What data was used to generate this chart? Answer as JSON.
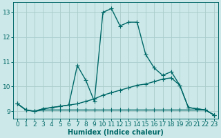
{
  "xlabel": "Humidex (Indice chaleur)",
  "bg_color": "#cce8e8",
  "grid_color": "#aacccc",
  "line_color": "#006868",
  "xlim": [
    -0.5,
    23.5
  ],
  "ylim": [
    8.7,
    13.4
  ],
  "xticks": [
    0,
    1,
    2,
    3,
    4,
    5,
    6,
    7,
    8,
    9,
    10,
    11,
    12,
    13,
    14,
    15,
    16,
    17,
    18,
    19,
    20,
    21,
    22,
    23
  ],
  "yticks": [
    9,
    10,
    11,
    12,
    13
  ],
  "line_flat_x": [
    0,
    1,
    2,
    3,
    4,
    5,
    6,
    7,
    8,
    9,
    10,
    11,
    12,
    13,
    14,
    15,
    16,
    17,
    18,
    19,
    20,
    21,
    22,
    23
  ],
  "line_flat_y": [
    9.3,
    9.05,
    9.0,
    9.05,
    9.05,
    9.05,
    9.05,
    9.05,
    9.05,
    9.05,
    9.05,
    9.05,
    9.05,
    9.05,
    9.05,
    9.05,
    9.05,
    9.05,
    9.05,
    9.05,
    9.05,
    9.05,
    9.05,
    8.85
  ],
  "line_rise_x": [
    0,
    1,
    2,
    3,
    4,
    5,
    6,
    7,
    8,
    9,
    10,
    11,
    12,
    13,
    14,
    15,
    16,
    17,
    18,
    19,
    20,
    21,
    22,
    23
  ],
  "line_rise_y": [
    9.3,
    9.05,
    9.0,
    9.1,
    9.15,
    9.2,
    9.25,
    9.3,
    9.4,
    9.5,
    9.65,
    9.75,
    9.85,
    9.95,
    10.05,
    10.1,
    10.2,
    10.3,
    10.35,
    10.05,
    9.15,
    9.1,
    9.05,
    8.85
  ],
  "line_peak_x": [
    0,
    1,
    2,
    3,
    4,
    5,
    6,
    7,
    8,
    9,
    10,
    11,
    12,
    13,
    14,
    15,
    16,
    17,
    18,
    19,
    20,
    21,
    22,
    23
  ],
  "line_peak_y": [
    9.3,
    9.05,
    9.0,
    9.1,
    9.15,
    9.2,
    9.25,
    10.85,
    10.25,
    9.4,
    13.0,
    13.15,
    12.45,
    12.6,
    12.6,
    11.3,
    10.75,
    10.45,
    10.6,
    10.05,
    9.15,
    9.1,
    9.05,
    8.85
  ],
  "marker": "+",
  "marker_size": 4,
  "line_width": 1.0,
  "xlabel_fontsize": 7,
  "tick_fontsize": 6.5
}
